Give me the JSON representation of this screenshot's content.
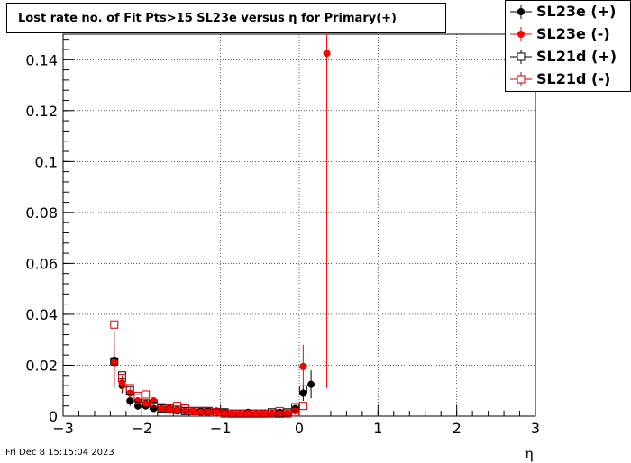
{
  "chart_data": {
    "type": "scatter",
    "title": "Lost rate no. of Fit Pts>15 SL23e versus η for Primary(+)",
    "xlabel": "η",
    "ylabel": "",
    "xlim": [
      -3,
      3
    ],
    "ylim": [
      0,
      0.15
    ],
    "x_ticks": [
      "−3",
      "−2",
      "−1",
      "0",
      "1",
      "2",
      "3"
    ],
    "y_ticks": [
      "0",
      "0.02",
      "0.04",
      "0.06",
      "0.08",
      "0.1",
      "0.12",
      "0.14"
    ],
    "grid": true,
    "legend_position": "top-right",
    "series": [
      {
        "name": "SL23e (+)",
        "color": "#000000",
        "marker": "filled-circle",
        "points": [
          {
            "x": -2.35,
            "y": 0.022,
            "err": 0.011
          },
          {
            "x": -2.25,
            "y": 0.012,
            "err": 0.003
          },
          {
            "x": -2.15,
            "y": 0.006,
            "err": 0.002
          },
          {
            "x": -2.05,
            "y": 0.004,
            "err": 0.0015
          },
          {
            "x": -1.95,
            "y": 0.004,
            "err": 0.0012
          },
          {
            "x": -1.85,
            "y": 0.003,
            "err": 0.001
          },
          {
            "x": -1.75,
            "y": 0.003,
            "err": 0.001
          },
          {
            "x": -1.65,
            "y": 0.003,
            "err": 0.001
          },
          {
            "x": -1.55,
            "y": 0.002,
            "err": 0.0008
          },
          {
            "x": -1.45,
            "y": 0.002,
            "err": 0.0008
          },
          {
            "x": -1.35,
            "y": 0.002,
            "err": 0.0008
          },
          {
            "x": -1.25,
            "y": 0.002,
            "err": 0.0008
          },
          {
            "x": -1.15,
            "y": 0.002,
            "err": 0.0008
          },
          {
            "x": -1.05,
            "y": 0.002,
            "err": 0.0008
          },
          {
            "x": -0.95,
            "y": 0.0015,
            "err": 0.0007
          },
          {
            "x": -0.85,
            "y": 0.001,
            "err": 0.0006
          },
          {
            "x": -0.75,
            "y": 0.001,
            "err": 0.0006
          },
          {
            "x": -0.65,
            "y": 0.0015,
            "err": 0.0007
          },
          {
            "x": -0.55,
            "y": 0.001,
            "err": 0.0006
          },
          {
            "x": -0.45,
            "y": 0.001,
            "err": 0.0006
          },
          {
            "x": -0.35,
            "y": 0.001,
            "err": 0.0006
          },
          {
            "x": -0.25,
            "y": 0.0015,
            "err": 0.0007
          },
          {
            "x": -0.15,
            "y": 0.001,
            "err": 0.0006
          },
          {
            "x": -0.05,
            "y": 0.003,
            "err": 0.0012
          },
          {
            "x": 0.05,
            "y": 0.009,
            "err": 0.003
          },
          {
            "x": 0.15,
            "y": 0.0125,
            "err": 0.0055
          }
        ]
      },
      {
        "name": "SL23e (-)",
        "color": "#ff0000",
        "marker": "filled-circle",
        "points": [
          {
            "x": -2.35,
            "y": 0.021,
            "err": 0.008
          },
          {
            "x": -2.25,
            "y": 0.013,
            "err": 0.003
          },
          {
            "x": -2.15,
            "y": 0.009,
            "err": 0.002
          },
          {
            "x": -2.05,
            "y": 0.006,
            "err": 0.0015
          },
          {
            "x": -1.95,
            "y": 0.005,
            "err": 0.0012
          },
          {
            "x": -1.85,
            "y": 0.006,
            "err": 0.0012
          },
          {
            "x": -1.75,
            "y": 0.003,
            "err": 0.001
          },
          {
            "x": -1.65,
            "y": 0.0025,
            "err": 0.0009
          },
          {
            "x": -1.55,
            "y": 0.0025,
            "err": 0.0009
          },
          {
            "x": -1.45,
            "y": 0.002,
            "err": 0.0008
          },
          {
            "x": -1.35,
            "y": 0.002,
            "err": 0.0008
          },
          {
            "x": -1.25,
            "y": 0.0015,
            "err": 0.0007
          },
          {
            "x": -1.15,
            "y": 0.0015,
            "err": 0.0007
          },
          {
            "x": -1.05,
            "y": 0.0015,
            "err": 0.0007
          },
          {
            "x": -0.95,
            "y": 0.001,
            "err": 0.0006
          },
          {
            "x": -0.85,
            "y": 0.001,
            "err": 0.0006
          },
          {
            "x": -0.75,
            "y": 0.001,
            "err": 0.0006
          },
          {
            "x": -0.65,
            "y": 0.001,
            "err": 0.0006
          },
          {
            "x": -0.55,
            "y": 0.001,
            "err": 0.0006
          },
          {
            "x": -0.45,
            "y": 0.001,
            "err": 0.0006
          },
          {
            "x": -0.35,
            "y": 0.001,
            "err": 0.0006
          },
          {
            "x": -0.25,
            "y": 0.001,
            "err": 0.0006
          },
          {
            "x": -0.15,
            "y": 0.001,
            "err": 0.0006
          },
          {
            "x": -0.05,
            "y": 0.002,
            "err": 0.001
          },
          {
            "x": 0.05,
            "y": 0.0195,
            "err": 0.0085
          },
          {
            "x": 0.35,
            "y": 0.1425,
            "err": 0.1315
          }
        ]
      },
      {
        "name": "SL21d (+)",
        "color": "#000000",
        "marker": "open-square",
        "points": [
          {
            "x": -2.35,
            "y": 0.0215,
            "err": 0.0
          },
          {
            "x": -2.25,
            "y": 0.016,
            "err": 0.0
          },
          {
            "x": -2.15,
            "y": 0.01,
            "err": 0.0
          },
          {
            "x": -2.05,
            "y": 0.007,
            "err": 0.0
          },
          {
            "x": -1.95,
            "y": 0.005,
            "err": 0.0
          },
          {
            "x": -1.85,
            "y": 0.004,
            "err": 0.0
          },
          {
            "x": -1.75,
            "y": 0.003,
            "err": 0.0
          },
          {
            "x": -1.65,
            "y": 0.003,
            "err": 0.0
          },
          {
            "x": -1.55,
            "y": 0.0025,
            "err": 0.0
          },
          {
            "x": -1.45,
            "y": 0.002,
            "err": 0.0
          },
          {
            "x": -1.35,
            "y": 0.002,
            "err": 0.0
          },
          {
            "x": -1.25,
            "y": 0.002,
            "err": 0.0
          },
          {
            "x": -1.15,
            "y": 0.002,
            "err": 0.0
          },
          {
            "x": -1.05,
            "y": 0.0015,
            "err": 0.0
          },
          {
            "x": -0.95,
            "y": 0.0015,
            "err": 0.0
          },
          {
            "x": -0.85,
            "y": 0.001,
            "err": 0.0
          },
          {
            "x": -0.75,
            "y": 0.001,
            "err": 0.0
          },
          {
            "x": -0.65,
            "y": 0.001,
            "err": 0.0
          },
          {
            "x": -0.55,
            "y": 0.001,
            "err": 0.0
          },
          {
            "x": -0.45,
            "y": 0.001,
            "err": 0.0
          },
          {
            "x": -0.35,
            "y": 0.0015,
            "err": 0.0
          },
          {
            "x": -0.25,
            "y": 0.001,
            "err": 0.0
          },
          {
            "x": -0.15,
            "y": 0.0015,
            "err": 0.0
          },
          {
            "x": -0.05,
            "y": 0.0035,
            "err": 0.0
          },
          {
            "x": 0.05,
            "y": 0.0105,
            "err": 0.0
          }
        ]
      },
      {
        "name": "SL21d (-)",
        "color": "#cc0000",
        "marker": "open-square",
        "points": [
          {
            "x": -2.35,
            "y": 0.036,
            "err": 0.0
          },
          {
            "x": -2.25,
            "y": 0.015,
            "err": 0.0
          },
          {
            "x": -2.15,
            "y": 0.011,
            "err": 0.0
          },
          {
            "x": -2.05,
            "y": 0.008,
            "err": 0.0
          },
          {
            "x": -1.95,
            "y": 0.0085,
            "err": 0.0
          },
          {
            "x": -1.85,
            "y": 0.005,
            "err": 0.0
          },
          {
            "x": -1.75,
            "y": 0.0035,
            "err": 0.0
          },
          {
            "x": -1.65,
            "y": 0.003,
            "err": 0.0
          },
          {
            "x": -1.55,
            "y": 0.004,
            "err": 0.0
          },
          {
            "x": -1.45,
            "y": 0.003,
            "err": 0.0
          },
          {
            "x": -1.35,
            "y": 0.002,
            "err": 0.0
          },
          {
            "x": -1.25,
            "y": 0.002,
            "err": 0.0
          },
          {
            "x": -1.15,
            "y": 0.002,
            "err": 0.0
          },
          {
            "x": -1.05,
            "y": 0.0015,
            "err": 0.0
          },
          {
            "x": -0.95,
            "y": 0.001,
            "err": 0.0
          },
          {
            "x": -0.85,
            "y": 0.001,
            "err": 0.0
          },
          {
            "x": -0.75,
            "y": 0.001,
            "err": 0.0
          },
          {
            "x": -0.65,
            "y": 0.001,
            "err": 0.0
          },
          {
            "x": -0.55,
            "y": 0.001,
            "err": 0.0
          },
          {
            "x": -0.45,
            "y": 0.001,
            "err": 0.0
          },
          {
            "x": -0.35,
            "y": 0.001,
            "err": 0.0
          },
          {
            "x": -0.25,
            "y": 0.002,
            "err": 0.0
          },
          {
            "x": -0.15,
            "y": 0.001,
            "err": 0.0
          },
          {
            "x": -0.05,
            "y": 0.0015,
            "err": 0.0
          },
          {
            "x": 0.05,
            "y": 0.004,
            "err": 0.0
          }
        ]
      }
    ]
  },
  "footer": {
    "datestamp": "Fri Dec  8 15:15:04 2023"
  }
}
